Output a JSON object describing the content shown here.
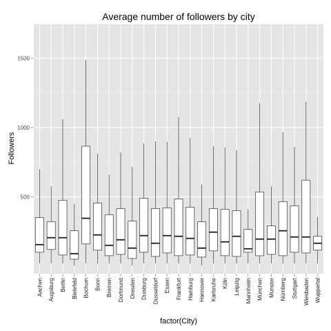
{
  "chart_data": {
    "type": "box",
    "title": "Average number of followers by city",
    "xlabel": "factor(City)",
    "ylabel": "Followers",
    "ylim": [
      -55,
      1745
    ],
    "yticks": [
      500,
      1000,
      1500
    ],
    "grid": true,
    "panel_background": "#e5e5e5",
    "grid_color": "#ffffff",
    "box_fill": "#ffffff",
    "box_stroke": "#333333",
    "categories": [
      "Aachen",
      "Augsburg",
      "Berlin",
      "Bielefeld",
      "Bochum",
      "Bonn",
      "Bremen",
      "Dortmund",
      "Dresden",
      "Duisburg",
      "Düsseldorf",
      "Essen",
      "Frankfurt",
      "Hamburg",
      "Hannover",
      "Karlsruhe",
      "Köln",
      "Leipzig",
      "Mannheim",
      "München",
      "Münster",
      "Nürnberg",
      "Stuttgart",
      "Wiesbaden",
      "Wuppertal"
    ],
    "boxes": [
      {
        "min": 20,
        "q1": 100,
        "median": 155,
        "q3": 350,
        "max": 700
      },
      {
        "min": 20,
        "q1": 120,
        "median": 205,
        "q3": 320,
        "max": 575
      },
      {
        "min": 20,
        "q1": 80,
        "median": 205,
        "q3": 475,
        "max": 1060
      },
      {
        "min": 5,
        "q1": 50,
        "median": 90,
        "q3": 255,
        "max": 450
      },
      {
        "min": 20,
        "q1": 160,
        "median": 345,
        "q3": 865,
        "max": 1485
      },
      {
        "min": 20,
        "q1": 115,
        "median": 225,
        "q3": 455,
        "max": 810
      },
      {
        "min": 20,
        "q1": 75,
        "median": 150,
        "q3": 370,
        "max": 660
      },
      {
        "min": 20,
        "q1": 85,
        "median": 190,
        "q3": 415,
        "max": 820
      },
      {
        "min": 5,
        "q1": 55,
        "median": 130,
        "q3": 325,
        "max": 715
      },
      {
        "min": 20,
        "q1": 100,
        "median": 220,
        "q3": 490,
        "max": 885
      },
      {
        "min": 20,
        "q1": 70,
        "median": 165,
        "q3": 415,
        "max": 900
      },
      {
        "min": 20,
        "q1": 95,
        "median": 220,
        "q3": 420,
        "max": 895
      },
      {
        "min": 20,
        "q1": 75,
        "median": 215,
        "q3": 485,
        "max": 1075
      },
      {
        "min": 20,
        "q1": 80,
        "median": 200,
        "q3": 425,
        "max": 925
      },
      {
        "min": 5,
        "q1": 65,
        "median": 130,
        "q3": 320,
        "max": 590
      },
      {
        "min": 20,
        "q1": 110,
        "median": 245,
        "q3": 415,
        "max": 865
      },
      {
        "min": 20,
        "q1": 75,
        "median": 175,
        "q3": 410,
        "max": 855
      },
      {
        "min": 20,
        "q1": 70,
        "median": 215,
        "q3": 400,
        "max": 835
      },
      {
        "min": 20,
        "q1": 100,
        "median": 125,
        "q3": 265,
        "max": 410
      },
      {
        "min": 20,
        "q1": 75,
        "median": 195,
        "q3": 535,
        "max": 1175
      },
      {
        "min": 20,
        "q1": 85,
        "median": 195,
        "q3": 290,
        "max": 575
      },
      {
        "min": 20,
        "q1": 75,
        "median": 255,
        "q3": 465,
        "max": 965
      },
      {
        "min": 20,
        "q1": 100,
        "median": 210,
        "q3": 435,
        "max": 860
      },
      {
        "min": 20,
        "q1": 95,
        "median": 210,
        "q3": 620,
        "max": 1185
      },
      {
        "min": 20,
        "q1": 115,
        "median": 165,
        "q3": 215,
        "max": 355
      }
    ]
  }
}
